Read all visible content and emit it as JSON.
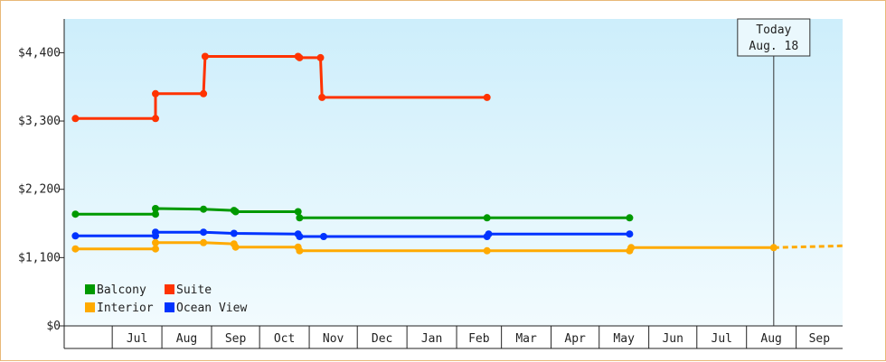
{
  "chart_data": {
    "type": "line",
    "title": "",
    "xlabel": "",
    "ylabel": "",
    "ylim": [
      0,
      4400
    ],
    "y_ticks": [
      {
        "value": 0,
        "label": "$0"
      },
      {
        "value": 1100,
        "label": "$1,100"
      },
      {
        "value": 2200,
        "label": "$2,200"
      },
      {
        "value": 3300,
        "label": "$3,300"
      },
      {
        "value": 4400,
        "label": "$4,400"
      }
    ],
    "x_range": [
      "2022-06-01",
      "2023-09-30"
    ],
    "months": [
      {
        "label": "Jul",
        "start": "2022-07-01",
        "end": "2022-08-01"
      },
      {
        "label": "Aug",
        "start": "2022-08-01",
        "end": "2022-09-01"
      },
      {
        "label": "Sep",
        "start": "2022-09-01",
        "end": "2022-10-01"
      },
      {
        "label": "Oct",
        "start": "2022-10-01",
        "end": "2022-11-01"
      },
      {
        "label": "Nov",
        "start": "2022-11-01",
        "end": "2022-12-01"
      },
      {
        "label": "Dec",
        "start": "2022-12-01",
        "end": "2023-01-01"
      },
      {
        "label": "Jan",
        "start": "2023-01-01",
        "end": "2023-02-01"
      },
      {
        "label": "Feb",
        "start": "2023-02-01",
        "end": "2023-03-01"
      },
      {
        "label": "Mar",
        "start": "2023-03-01",
        "end": "2023-04-01"
      },
      {
        "label": "Apr",
        "start": "2023-04-01",
        "end": "2023-05-01"
      },
      {
        "label": "May",
        "start": "2023-05-01",
        "end": "2023-06-01"
      },
      {
        "label": "Jun",
        "start": "2023-06-01",
        "end": "2023-07-01"
      },
      {
        "label": "Jul",
        "start": "2023-07-01",
        "end": "2023-08-01"
      },
      {
        "label": "Aug",
        "start": "2023-08-01",
        "end": "2023-09-01"
      },
      {
        "label": "Sep",
        "start": "2023-09-01",
        "end": "2023-10-01"
      }
    ],
    "today": {
      "label": "Today",
      "date_label": "Aug. 18",
      "date": "2023-08-18"
    },
    "series": [
      {
        "name": "Suite",
        "color": "#ff3300",
        "points": [
          {
            "x": "2022-06-08",
            "y": 3340
          },
          {
            "x": "2022-07-28",
            "y": 3340
          },
          {
            "x": "2022-07-28",
            "y": 3740
          },
          {
            "x": "2022-08-27",
            "y": 3740
          },
          {
            "x": "2022-08-28",
            "y": 4340
          },
          {
            "x": "2022-10-25",
            "y": 4340
          },
          {
            "x": "2022-10-26",
            "y": 4320
          },
          {
            "x": "2022-11-08",
            "y": 4320
          },
          {
            "x": "2022-11-09",
            "y": 3680
          },
          {
            "x": "2023-02-20",
            "y": 3680
          }
        ]
      },
      {
        "name": "Balcony",
        "color": "#009900",
        "points": [
          {
            "x": "2022-06-08",
            "y": 1800
          },
          {
            "x": "2022-07-28",
            "y": 1800
          },
          {
            "x": "2022-07-28",
            "y": 1890
          },
          {
            "x": "2022-08-27",
            "y": 1880
          },
          {
            "x": "2022-09-15",
            "y": 1860
          },
          {
            "x": "2022-09-16",
            "y": 1840
          },
          {
            "x": "2022-10-25",
            "y": 1840
          },
          {
            "x": "2022-10-26",
            "y": 1740
          },
          {
            "x": "2023-02-20",
            "y": 1740
          },
          {
            "x": "2023-05-20",
            "y": 1740
          }
        ]
      },
      {
        "name": "Ocean View",
        "color": "#0033ff",
        "points": [
          {
            "x": "2022-06-08",
            "y": 1450
          },
          {
            "x": "2022-07-28",
            "y": 1450
          },
          {
            "x": "2022-07-28",
            "y": 1510
          },
          {
            "x": "2022-08-27",
            "y": 1510
          },
          {
            "x": "2022-09-15",
            "y": 1490
          },
          {
            "x": "2022-10-25",
            "y": 1480
          },
          {
            "x": "2022-10-26",
            "y": 1440
          },
          {
            "x": "2022-11-10",
            "y": 1440
          },
          {
            "x": "2023-02-20",
            "y": 1440
          },
          {
            "x": "2023-02-21",
            "y": 1480
          },
          {
            "x": "2023-05-20",
            "y": 1480
          }
        ]
      },
      {
        "name": "Interior",
        "color": "#ffaa00",
        "points": [
          {
            "x": "2022-06-08",
            "y": 1240
          },
          {
            "x": "2022-07-28",
            "y": 1240
          },
          {
            "x": "2022-07-28",
            "y": 1340
          },
          {
            "x": "2022-08-27",
            "y": 1340
          },
          {
            "x": "2022-09-15",
            "y": 1320
          },
          {
            "x": "2022-09-16",
            "y": 1270
          },
          {
            "x": "2022-10-25",
            "y": 1270
          },
          {
            "x": "2022-10-26",
            "y": 1210
          },
          {
            "x": "2023-02-20",
            "y": 1210
          },
          {
            "x": "2023-05-20",
            "y": 1210
          },
          {
            "x": "2023-05-21",
            "y": 1260
          },
          {
            "x": "2023-08-18",
            "y": 1260
          }
        ],
        "projection": [
          {
            "x": "2023-08-18",
            "y": 1260
          },
          {
            "x": "2023-09-30",
            "y": 1290
          }
        ]
      }
    ],
    "legend": {
      "placement": "bottom-left",
      "items": [
        {
          "label": "Balcony",
          "color": "#009900"
        },
        {
          "label": "Suite",
          "color": "#ff3300"
        },
        {
          "label": "Interior",
          "color": "#ffaa00"
        },
        {
          "label": "Ocean View",
          "color": "#0033ff"
        }
      ]
    }
  }
}
